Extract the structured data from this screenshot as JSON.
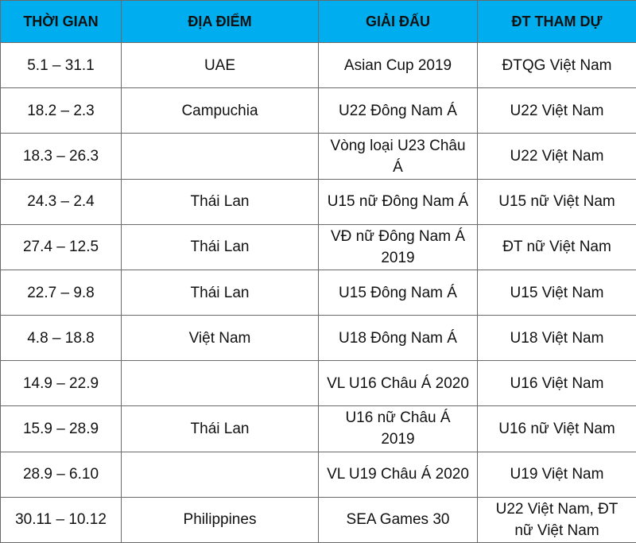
{
  "table": {
    "header": [
      "THỜI GIAN",
      "ĐỊA ĐIỂM",
      "GIẢI ĐẤU",
      "ĐT THAM DỰ"
    ],
    "rows": [
      [
        "5.1 – 31.1",
        "UAE",
        "Asian Cup 2019",
        "ĐTQG Việt Nam"
      ],
      [
        "18.2 – 2.3",
        "Campuchia",
        "U22 Đông Nam Á",
        "U22 Việt Nam"
      ],
      [
        "18.3 – 26.3",
        null,
        "Vòng loại U23 Châu Á",
        "U22 Việt Nam"
      ],
      [
        "24.3 – 2.4",
        "Thái Lan",
        "U15 nữ Đông Nam Á",
        "U15 nữ Việt Nam"
      ],
      [
        "27.4 – 12.5",
        "Thái Lan",
        "VĐ nữ Đông Nam Á 2019",
        "ĐT nữ Việt Nam"
      ],
      [
        "22.7 – 9.8",
        "Thái Lan",
        "U15 Đông Nam Á",
        "U15 Việt Nam"
      ],
      [
        "4.8 – 18.8",
        "Việt Nam",
        "U18 Đông Nam Á",
        "U18 Việt Nam"
      ],
      [
        "14.9 – 22.9",
        null,
        "VL U16 Châu Á 2020",
        "U16 Việt Nam"
      ],
      [
        "15.9 – 28.9",
        "Thái Lan",
        "U16 nữ Châu Á 2019",
        "U16 nữ Việt Nam"
      ],
      [
        "28.9 – 6.10",
        null,
        "VL U19 Châu Á 2020",
        "U19 Việt Nam"
      ],
      [
        "30.11 – 10.12",
        "Philippines",
        "SEA Games 30",
        "U22 Việt Nam, ĐT nữ Việt Nam"
      ]
    ]
  }
}
